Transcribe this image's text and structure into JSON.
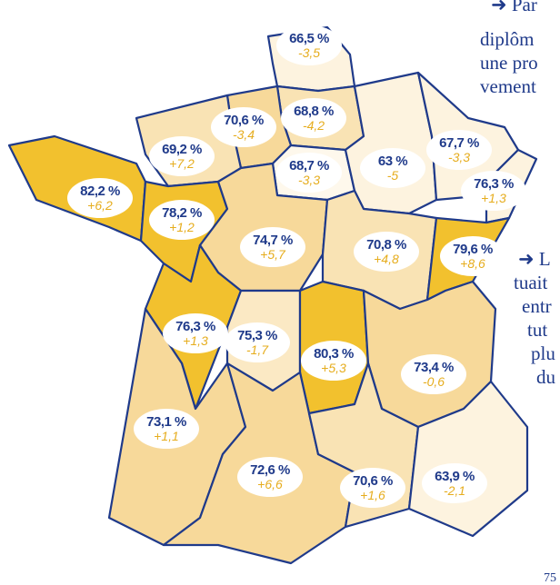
{
  "regions": [
    {
      "value": "66,5 %",
      "change": "-3,5",
      "color": "#fdf3df"
    },
    {
      "value": "68,8 %",
      "change": "-4,2",
      "color": "#f9e3b4"
    },
    {
      "value": "70,6 %",
      "change": "-3,4",
      "color": "#f7d99a"
    },
    {
      "value": "69,2 %",
      "change": "+7,2",
      "color": "#f9e3b4"
    },
    {
      "value": "68,7 %",
      "change": "-3,3",
      "color": "#fef8ec"
    },
    {
      "value": "63 %",
      "change": "-5",
      "color": "#fdf3df"
    },
    {
      "value": "67,7 %",
      "change": "-3,3",
      "color": "#fdf3df"
    },
    {
      "value": "76,3 %",
      "change": "+1,3",
      "color": "#fdf3df"
    },
    {
      "value": "82,2 %",
      "change": "+6,2",
      "color": "#f2c12e"
    },
    {
      "value": "78,2 %",
      "change": "+1,2",
      "color": "#f2c12e"
    },
    {
      "value": "74,7 %",
      "change": "+5,7",
      "color": "#f7d99a"
    },
    {
      "value": "70,8 %",
      "change": "+4,8",
      "color": "#f9e3b4"
    },
    {
      "value": "79,6 %",
      "change": "+8,6",
      "color": "#f2c12e"
    },
    {
      "value": "76,3 %",
      "change": "+1,3",
      "color": "#f2c12e"
    },
    {
      "value": "75,3 %",
      "change": "-1,7",
      "color": "#fbe9c4"
    },
    {
      "value": "80,3 %",
      "change": "+5,3",
      "color": "#f2c12e"
    },
    {
      "value": "73,4 %",
      "change": "-0,6",
      "color": "#f7d99a"
    },
    {
      "value": "73,1 %",
      "change": "+1,1",
      "color": "#f7d99a"
    },
    {
      "value": "72,6 %",
      "change": "+6,6",
      "color": "#f7d99a"
    },
    {
      "value": "70,6 %",
      "change": "+1,6",
      "color": "#f9e3b4"
    },
    {
      "value": "63,9 %",
      "change": "-2,1",
      "color": "#fdf3df"
    }
  ],
  "side_text": {
    "top": [
      "➜ Par",
      "diplôm",
      "une pro",
      "vement"
    ],
    "middle": [
      "➜ L",
      "tuait",
      "entr",
      "tut",
      "plu",
      "du"
    ],
    "bottom": "75"
  }
}
